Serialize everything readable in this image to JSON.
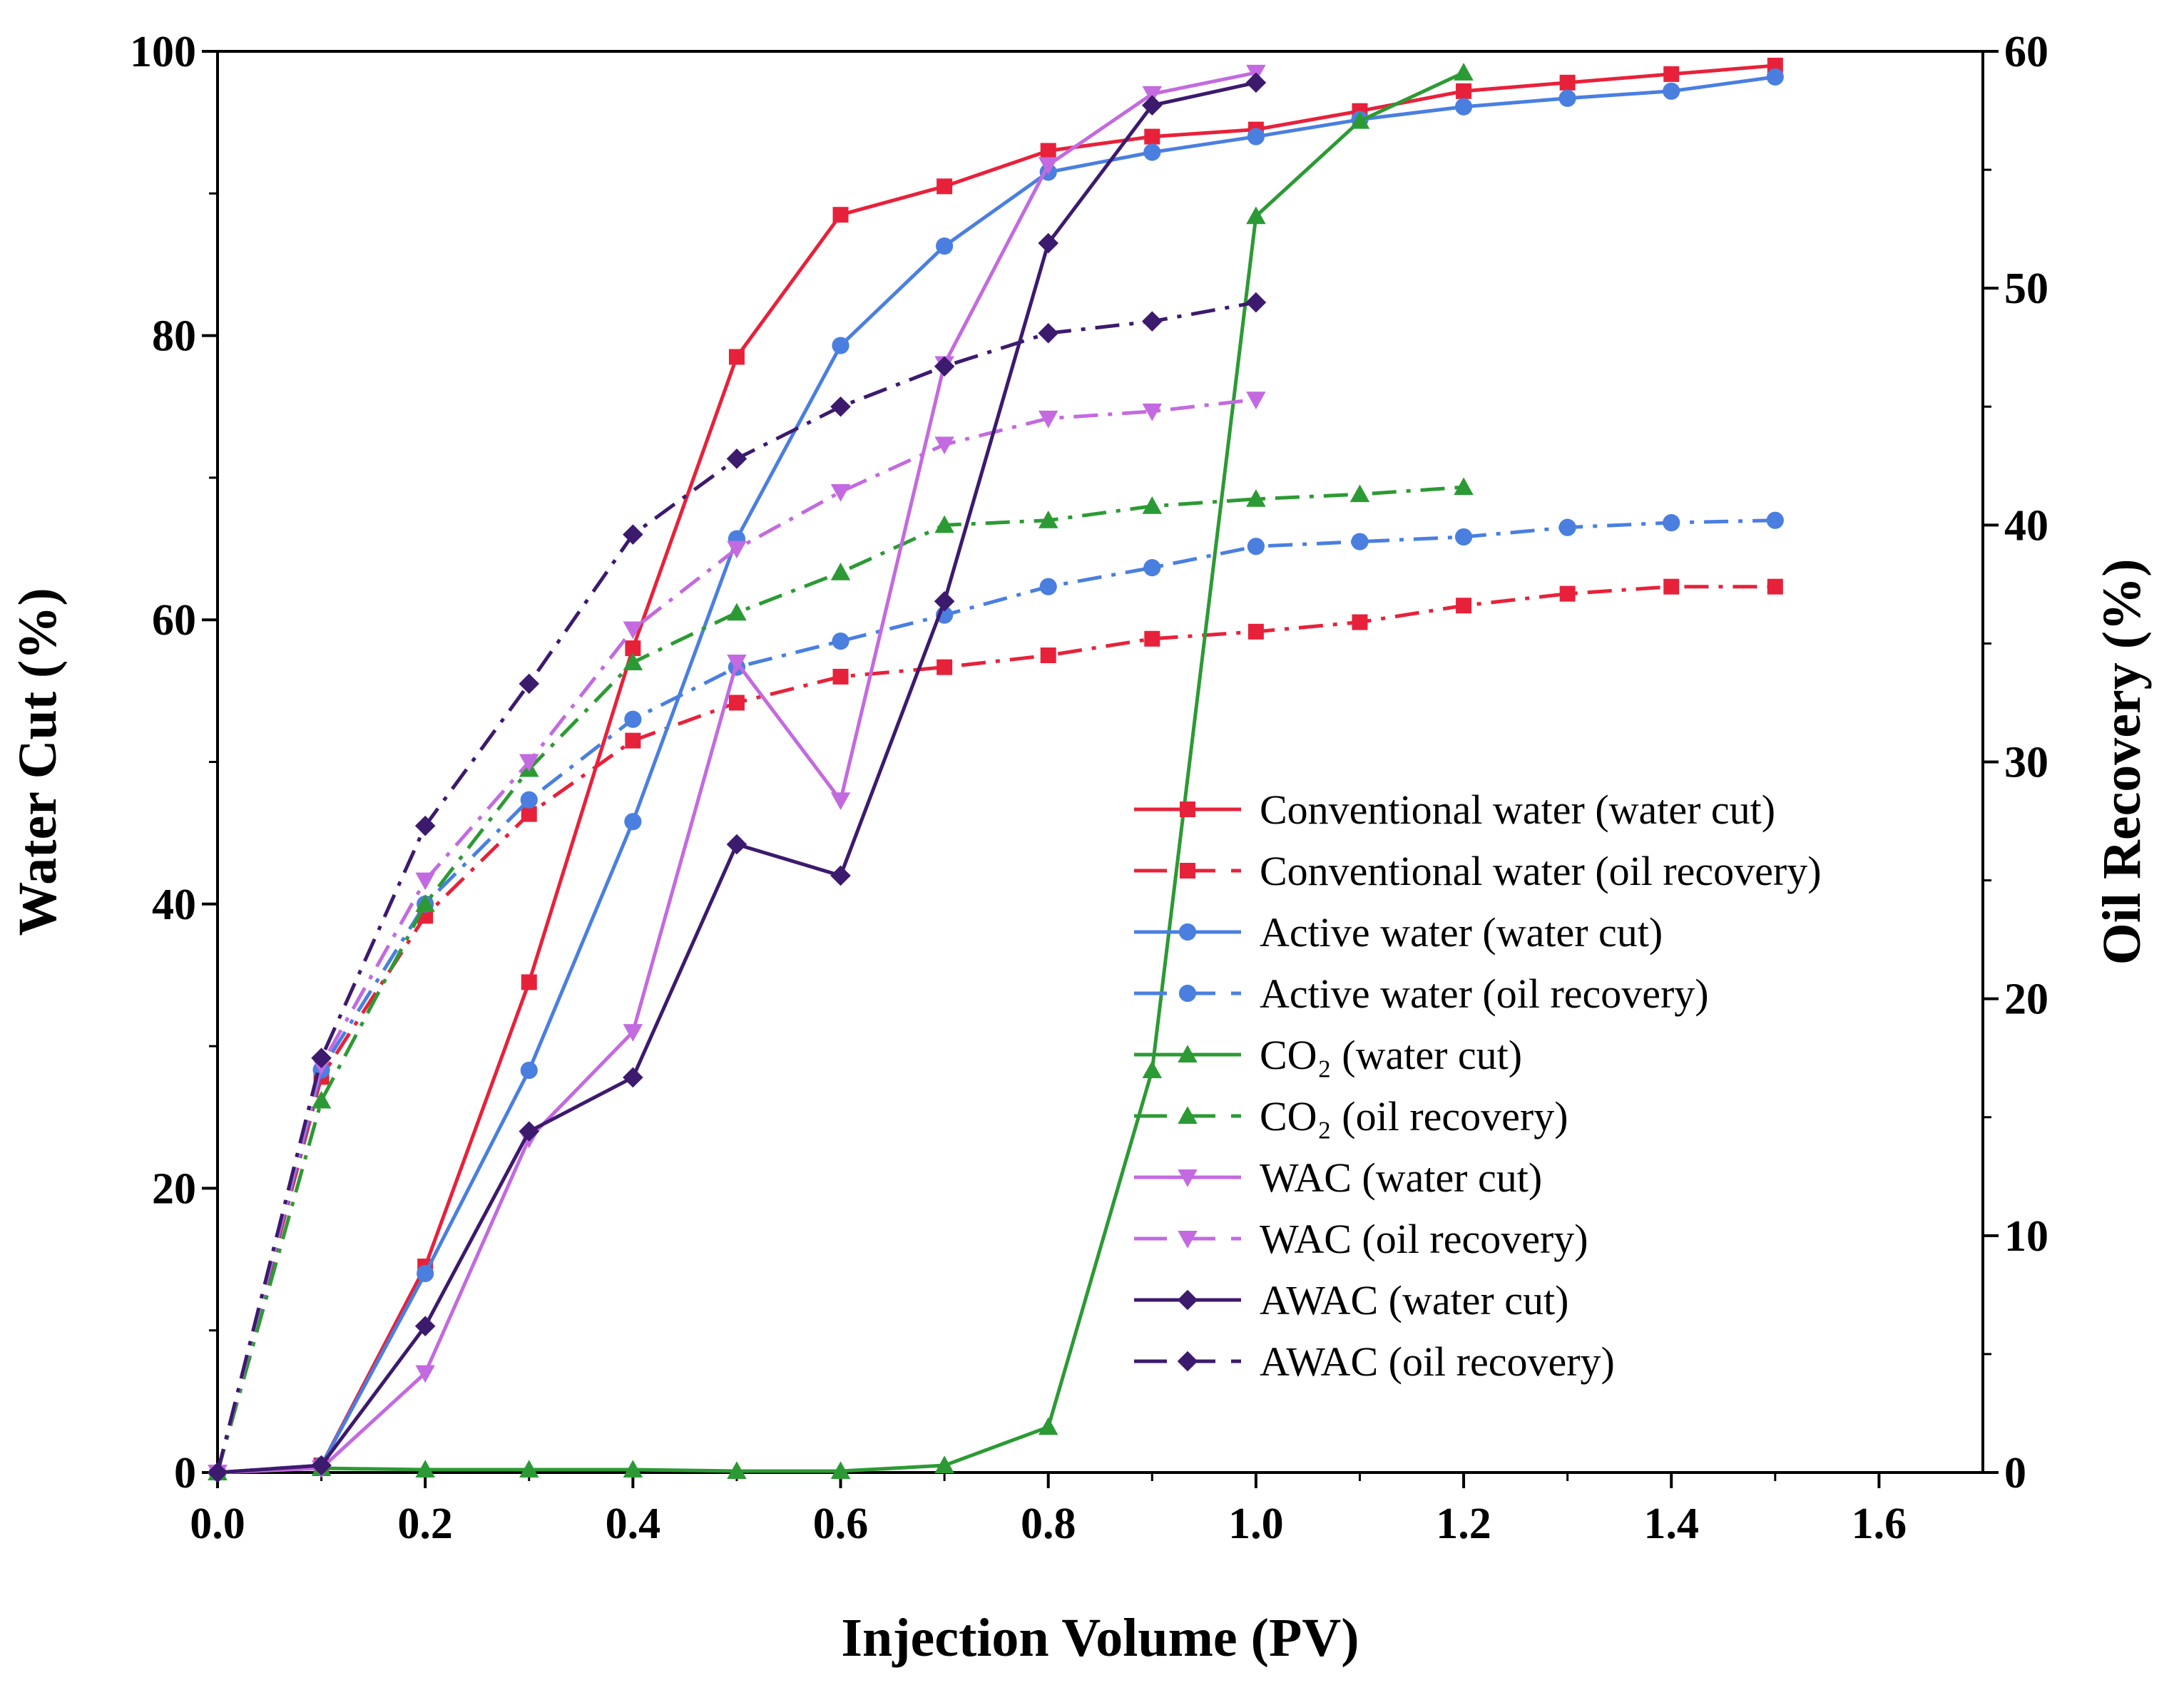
{
  "chart_data": {
    "type": "line",
    "xlabel": "Injection Volume (PV)",
    "ylabel_left": "Water Cut (%)",
    "ylabel_right": "Oil Recovery (%)",
    "xlim": [
      0,
      1.7
    ],
    "ylim_left": [
      0,
      100
    ],
    "ylim_right": [
      0,
      60
    ],
    "x_ticks": [
      "0.0",
      "0.2",
      "0.4",
      "0.6",
      "0.8",
      "1.0",
      "1.2",
      "1.4",
      "1.6"
    ],
    "y_left_ticks": [
      "0",
      "20",
      "40",
      "60",
      "80",
      "100"
    ],
    "y_right_ticks": [
      "0",
      "10",
      "20",
      "30",
      "40",
      "50",
      "60"
    ],
    "grid": false,
    "legend_position": "lower-right",
    "series": [
      {
        "name": "Conventional water (water cut)",
        "color": "#e8213a",
        "marker": "square",
        "style": "solid",
        "axis": "left",
        "x": [
          0,
          0.1,
          0.2,
          0.3,
          0.4,
          0.5,
          0.6,
          0.7,
          0.8,
          0.9,
          1.0,
          1.1,
          1.2,
          1.3,
          1.4,
          1.5
        ],
        "y": [
          0,
          0.5,
          14.5,
          34.5,
          58,
          78.5,
          88.5,
          90.5,
          93,
          94,
          94.5,
          95.8,
          97.2,
          97.8,
          98.4,
          99
        ]
      },
      {
        "name": "Conventional water (oil recovery)",
        "color": "#e8213a",
        "marker": "square",
        "style": "dashdot",
        "axis": "right",
        "x": [
          0,
          0.1,
          0.2,
          0.3,
          0.4,
          0.5,
          0.6,
          0.7,
          0.8,
          0.9,
          1.0,
          1.1,
          1.2,
          1.3,
          1.4,
          1.5
        ],
        "y": [
          0,
          16.7,
          23.5,
          27.8,
          30.9,
          32.5,
          33.6,
          34,
          34.5,
          35.2,
          35.5,
          35.9,
          36.6,
          37.1,
          37.4,
          37.4
        ]
      },
      {
        "name": "Active water (water cut)",
        "color": "#4a7fe0",
        "marker": "circle",
        "style": "solid",
        "axis": "left",
        "x": [
          0,
          0.1,
          0.2,
          0.3,
          0.4,
          0.5,
          0.6,
          0.7,
          0.8,
          0.9,
          1.0,
          1.1,
          1.2,
          1.3,
          1.4,
          1.5
        ],
        "y": [
          0,
          0.5,
          14,
          28.3,
          45.8,
          65.7,
          79.3,
          86.3,
          91.5,
          92.9,
          94,
          95.2,
          96.1,
          96.7,
          97.2,
          98.2
        ]
      },
      {
        "name": "Active water (oil recovery)",
        "color": "#4a7fe0",
        "marker": "circle",
        "style": "dashdot",
        "axis": "right",
        "x": [
          0,
          0.1,
          0.2,
          0.3,
          0.4,
          0.5,
          0.6,
          0.7,
          0.8,
          0.9,
          1.0,
          1.1,
          1.2,
          1.3,
          1.4,
          1.5
        ],
        "y": [
          0,
          17,
          24,
          28.4,
          31.8,
          34,
          35.1,
          36.2,
          37.4,
          38.2,
          39.1,
          39.3,
          39.5,
          39.9,
          40.1,
          40.2
        ]
      },
      {
        "name": "CO₂ (water cut)",
        "color": "#2c9a34",
        "marker": "triangle-up",
        "style": "solid",
        "axis": "left",
        "x": [
          0,
          0.1,
          0.2,
          0.3,
          0.4,
          0.5,
          0.6,
          0.7,
          0.8,
          0.9,
          1.0,
          1.1,
          1.2
        ],
        "y": [
          0,
          0.3,
          0.2,
          0.2,
          0.2,
          0.1,
          0.1,
          0.5,
          3.2,
          28.3,
          88.4,
          95.1,
          98.5
        ]
      },
      {
        "name": "CO₂ (oil recovery)",
        "color": "#2c9a34",
        "marker": "triangle-up",
        "style": "dashdot",
        "axis": "right",
        "x": [
          0,
          0.1,
          0.2,
          0.3,
          0.4,
          0.5,
          0.6,
          0.7,
          0.8,
          0.9,
          1.0,
          1.1,
          1.2
        ],
        "y": [
          0,
          15.7,
          24,
          29.7,
          34.2,
          36.3,
          38,
          40,
          40.2,
          40.8,
          41.1,
          41.3,
          41.6
        ]
      },
      {
        "name": "WAC (water cut)",
        "color": "#c36ae0",
        "marker": "triangle-down",
        "style": "solid",
        "axis": "left",
        "x": [
          0,
          0.1,
          0.2,
          0.3,
          0.4,
          0.5,
          0.6,
          0.7,
          0.8,
          0.9,
          1.0
        ],
        "y": [
          0,
          0.3,
          7,
          23.5,
          31,
          57,
          47.3,
          78,
          92,
          97,
          98.5
        ]
      },
      {
        "name": "WAC (oil recovery)",
        "color": "#c36ae0",
        "marker": "triangle-down",
        "style": "dashdot",
        "axis": "right",
        "x": [
          0,
          0.1,
          0.2,
          0.3,
          0.4,
          0.5,
          0.6,
          0.7,
          0.8,
          0.9,
          1.0
        ],
        "y": [
          0,
          17.2,
          25,
          30,
          35.6,
          39,
          41.4,
          43.4,
          44.5,
          44.8,
          45.3
        ]
      },
      {
        "name": "AWAC (water cut)",
        "color": "#3c1a6e",
        "marker": "diamond",
        "style": "solid",
        "axis": "left",
        "x": [
          0,
          0.1,
          0.2,
          0.3,
          0.4,
          0.5,
          0.6,
          0.7,
          0.8,
          0.9,
          1.0
        ],
        "y": [
          0,
          0.5,
          10.3,
          24,
          27.8,
          44.2,
          42,
          61.3,
          86.5,
          96.2,
          97.8
        ]
      },
      {
        "name": "AWAC (oil recovery)",
        "color": "#3c1a6e",
        "marker": "diamond",
        "style": "dashdot",
        "axis": "right",
        "x": [
          0,
          0.1,
          0.2,
          0.3,
          0.4,
          0.5,
          0.6,
          0.7,
          0.8,
          0.9,
          1.0
        ],
        "y": [
          0,
          17.5,
          27.3,
          33.3,
          39.6,
          42.8,
          45,
          46.7,
          48.1,
          48.6,
          49.4
        ]
      }
    ]
  }
}
